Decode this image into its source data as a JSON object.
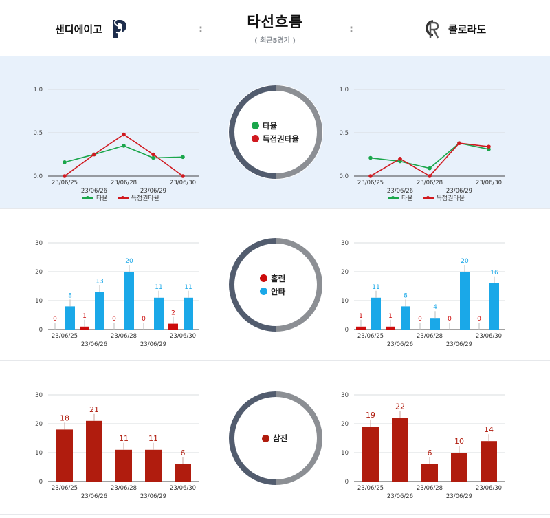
{
  "header": {
    "title": "타선흐름",
    "subtitle": "( 최근5경기 )",
    "team_left": "샌디에이고",
    "team_right": "콜로라도",
    "separator": ":"
  },
  "colors": {
    "avg": "#1aa64b",
    "risp": "#d0191f",
    "hr": "#cc0c0c",
    "hits": "#1aa8e8",
    "so": "#b01c0e",
    "ring_dark": "#525c6e",
    "ring_light": "#8c8f94"
  },
  "legends": {
    "batting": [
      "타율",
      "득점권타율"
    ],
    "hitting": [
      "홈런",
      "안타"
    ],
    "strikeout": [
      "삼진"
    ]
  },
  "chart_data": [
    {
      "type": "line",
      "team": "샌디에이고",
      "categories": [
        "23/06/25",
        "23/06/26",
        "23/06/28",
        "23/06/29",
        "23/06/30"
      ],
      "ylim": [
        0,
        1.0
      ],
      "yticks": [
        "0.0",
        "0.5",
        "1.0"
      ],
      "series": [
        {
          "name": "타율",
          "values": [
            0.16,
            0.25,
            0.35,
            0.21,
            0.22
          ]
        },
        {
          "name": "득점권타율",
          "values": [
            0.0,
            0.25,
            0.48,
            0.25,
            0.0
          ]
        }
      ]
    },
    {
      "type": "line",
      "team": "콜로라도",
      "categories": [
        "23/06/25",
        "23/06/26",
        "23/06/28",
        "23/06/29",
        "23/06/30"
      ],
      "ylim": [
        0,
        1.0
      ],
      "yticks": [
        "0.0",
        "0.5",
        "1.0"
      ],
      "series": [
        {
          "name": "타율",
          "values": [
            0.21,
            0.17,
            0.09,
            0.38,
            0.31
          ]
        },
        {
          "name": "득점권타율",
          "values": [
            0.0,
            0.2,
            0.0,
            0.38,
            0.34
          ]
        }
      ]
    },
    {
      "type": "bar",
      "team": "샌디에이고",
      "categories": [
        "23/06/25",
        "23/06/26",
        "23/06/28",
        "23/06/29",
        "23/06/30"
      ],
      "ylim": [
        0,
        30
      ],
      "yticks": [
        "0",
        "10",
        "20",
        "30"
      ],
      "series": [
        {
          "name": "홈런",
          "values": [
            0,
            1,
            0,
            0,
            2
          ]
        },
        {
          "name": "안타",
          "values": [
            8,
            13,
            20,
            11,
            11
          ]
        }
      ]
    },
    {
      "type": "bar",
      "team": "콜로라도",
      "categories": [
        "23/06/25",
        "23/06/26",
        "23/06/28",
        "23/06/29",
        "23/06/30"
      ],
      "ylim": [
        0,
        30
      ],
      "yticks": [
        "0",
        "10",
        "20",
        "30"
      ],
      "series": [
        {
          "name": "홈런",
          "values": [
            1,
            1,
            0,
            0,
            0
          ]
        },
        {
          "name": "안타",
          "values": [
            11,
            8,
            4,
            20,
            16
          ]
        }
      ]
    },
    {
      "type": "bar",
      "team": "샌디에이고",
      "categories": [
        "23/06/25",
        "23/06/26",
        "23/06/28",
        "23/06/29",
        "23/06/30"
      ],
      "ylim": [
        0,
        30
      ],
      "yticks": [
        "0",
        "10",
        "20",
        "30"
      ],
      "series": [
        {
          "name": "삼진",
          "values": [
            18,
            21,
            11,
            11,
            6
          ]
        }
      ]
    },
    {
      "type": "bar",
      "team": "콜로라도",
      "categories": [
        "23/06/25",
        "23/06/26",
        "23/06/28",
        "23/06/29",
        "23/06/30"
      ],
      "ylim": [
        0,
        30
      ],
      "yticks": [
        "0",
        "10",
        "20",
        "30"
      ],
      "series": [
        {
          "name": "삼진",
          "values": [
            19,
            22,
            6,
            10,
            14
          ]
        }
      ]
    }
  ]
}
